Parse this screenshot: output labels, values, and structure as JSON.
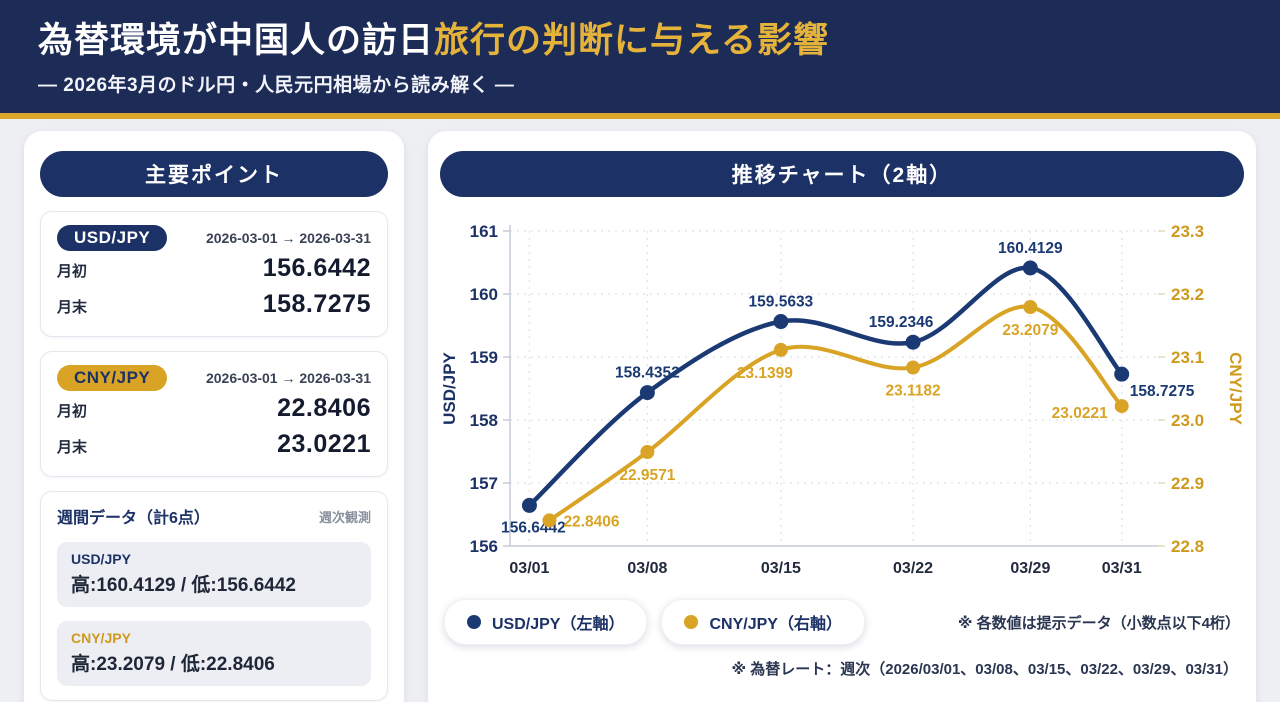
{
  "header": {
    "title_white": "為替環境が中国人の訪日",
    "title_gold": "旅行の判断に与える影響",
    "subtitle": "— 2026年3月のドル円・人民元円相場から読み解く —"
  },
  "colors": {
    "header_bg": "#1d2b57",
    "accent_gold": "#d9a62b",
    "navy": "#1c3166",
    "usd_color": "#1b3a74",
    "cny_color": "#d9a425",
    "page_bg": "#edeff3"
  },
  "left_panel": {
    "title": "主要ポイント",
    "cards": [
      {
        "pair": "USD/JPY",
        "range": "2026-03-01 → 2026-03-31",
        "rows": [
          {
            "label": "月初",
            "value": "156.6442"
          },
          {
            "label": "月末",
            "value": "158.7275"
          }
        ]
      },
      {
        "pair": "CNY/JPY",
        "range": "2026-03-01 → 2026-03-31",
        "rows": [
          {
            "label": "月初",
            "value": "22.8406"
          },
          {
            "label": "月末",
            "value": "23.0221"
          }
        ]
      }
    ],
    "weekly": {
      "title": "週間データ（計6点）",
      "note": "週次観測",
      "items": [
        {
          "pair": "USD/JPY",
          "stats": "高:160.4129 / 低:156.6442"
        },
        {
          "pair": "CNY/JPY",
          "stats": "高:23.2079 / 低:22.8406"
        }
      ]
    }
  },
  "chart_panel": {
    "title": "推移チャート（2軸）",
    "legend": [
      {
        "label": "USD/JPY（左軸）",
        "color": "#1b3a74"
      },
      {
        "label": "CNY/JPY（右軸）",
        "color": "#d9a425"
      }
    ],
    "footnote1": "※ 各数値は提示データ（小数点以下4桁）",
    "footnote2": "※ 為替レート：週次（2026/03/01、03/08、03/15、03/22、03/29、03/31）"
  },
  "chart_data": {
    "type": "line",
    "x": [
      "03/01",
      "03/08",
      "03/15",
      "03/22",
      "03/29",
      "03/31"
    ],
    "series": [
      {
        "name": "USD/JPY（左軸）",
        "axis": "left",
        "color": "#1b3a74",
        "values": [
          156.6442,
          158.4352,
          159.5633,
          159.2346,
          160.4129,
          158.7275
        ]
      },
      {
        "name": "CNY/JPY（右軸）",
        "axis": "right",
        "color": "#d9a425",
        "values": [
          22.8406,
          22.9571,
          23.1399,
          23.1182,
          23.2079,
          23.0221
        ]
      }
    ],
    "left_axis": {
      "label": "USD/JPY",
      "min": 156,
      "max": 161,
      "ticks": [
        "161",
        "160",
        "159",
        "158",
        "157",
        "156"
      ]
    },
    "right_axis": {
      "label": "CNY/JPY",
      "min": 22.8,
      "max": 23.3,
      "ticks": [
        "23.3",
        "23.2",
        "23.1",
        "23.0",
        "22.9",
        "22.8"
      ]
    },
    "grid": true,
    "legend_position": "bottom-left"
  }
}
